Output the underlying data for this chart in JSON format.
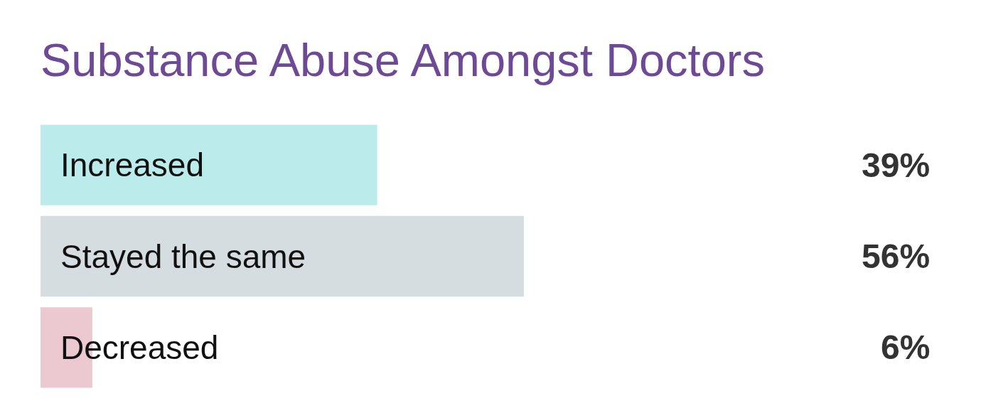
{
  "chart_data": {
    "type": "bar",
    "orientation": "horizontal",
    "title": "Substance Abuse Amongst Doctors",
    "categories": [
      "Increased",
      "Stayed the same",
      "Decreased"
    ],
    "values": [
      39,
      56,
      6
    ],
    "colors": [
      "#bbebea",
      "#d5dde0",
      "#ecc8d0"
    ],
    "value_labels": [
      "39%",
      "56%",
      "6%"
    ],
    "tick_labels": "y"
  }
}
